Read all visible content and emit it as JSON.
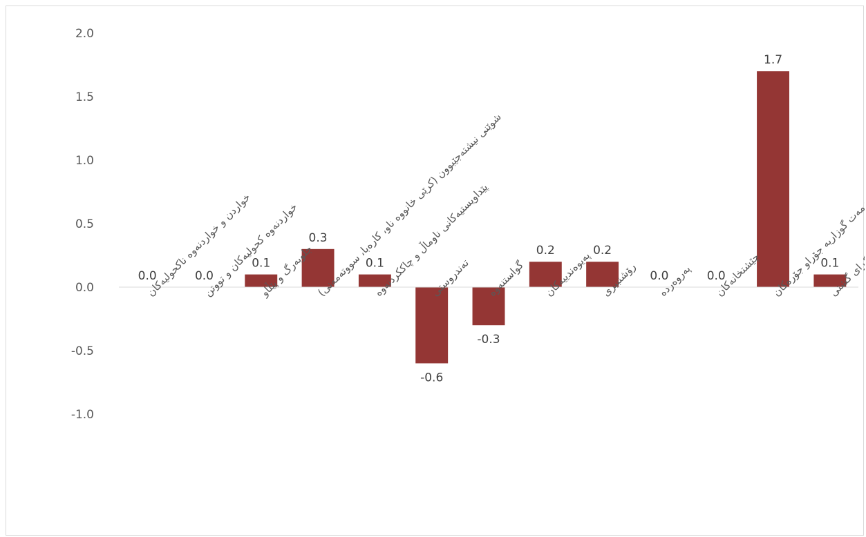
{
  "chart_data": {
    "type": "bar",
    "categories": [
      "خواردن و خواردنەوە ناکحولیەکان",
      "خواردنەوە کحولیەکان و تووتن",
      "جلوبەرگ و پێڵاو",
      "شوێنی نیشتەجێبوون (کرێی خانووە ناو، کارەبا، سووتەمەنی)",
      "پێداویستیەکانی ناوماڵ و چاککردنەوە",
      "تەندروستی",
      "گواستنەوە",
      "پەیوەندییەکان",
      "رۆشنبیری",
      "پەروەردە",
      "چێشتخانەکان",
      "کەرستە وخزمەت گوزاریە جۆراو جۆرەکان",
      "تێکڕای گشتی"
    ],
    "values": [
      0.0,
      0.0,
      0.1,
      0.3,
      0.1,
      -0.6,
      -0.3,
      0.2,
      0.2,
      0.0,
      0.0,
      1.7,
      0.1
    ],
    "data_labels": [
      "0.0",
      "0.0",
      "0.1",
      "0.3",
      "0.1",
      "-0.6",
      "-0.3",
      "0.2",
      "0.2",
      "0.0",
      "0.0",
      "1.7",
      "0.1"
    ],
    "ylim": [
      -1.0,
      2.0
    ],
    "y_ticks": [
      2.0,
      1.5,
      1.0,
      0.5,
      0.0,
      -0.5,
      -1.0
    ],
    "y_tick_labels": [
      "2.0",
      "1.5",
      "1.0",
      "0.5",
      "0.0",
      "-0.5",
      "-1.0"
    ],
    "grid": false,
    "legend": "none",
    "title": "",
    "xlabel": "",
    "ylabel": "",
    "bar_color": "#943634"
  }
}
